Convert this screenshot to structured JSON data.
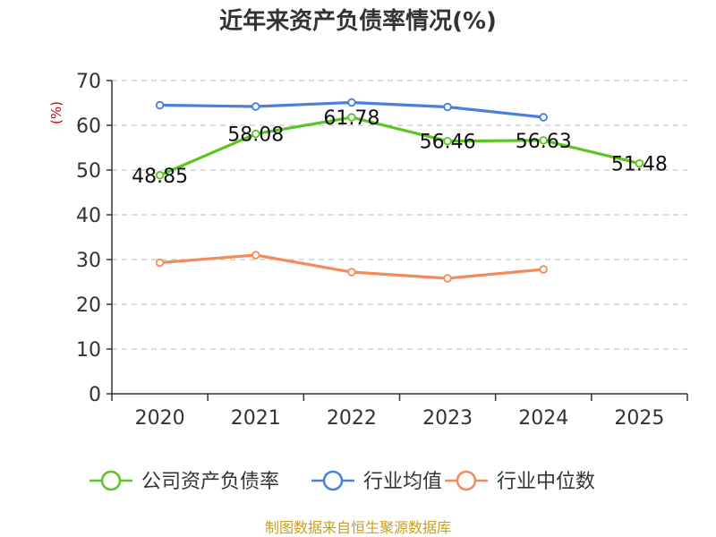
{
  "chart_data": {
    "type": "line",
    "title": "近年来资产负债率情况(%)",
    "ylabel": "(%)",
    "xlabel": "",
    "categories": [
      "2020",
      "2021",
      "2022",
      "2023",
      "2024",
      "2025"
    ],
    "ylim": [
      0,
      70
    ],
    "yticks": [
      0,
      10,
      20,
      30,
      40,
      50,
      60,
      70
    ],
    "grid": true,
    "legend_position": "bottom",
    "series": [
      {
        "name": "公司资产负债率",
        "color": "#5cc520",
        "values": [
          48.85,
          58.08,
          61.78,
          56.46,
          56.63,
          51.48
        ],
        "labels": [
          "48.85",
          "58.08",
          "61.78",
          "56.46",
          "56.63",
          "51.48"
        ]
      },
      {
        "name": "行业均值",
        "color": "#4a7fdb",
        "values": [
          64.5,
          64.2,
          65.1,
          64.1,
          61.8,
          null
        ]
      },
      {
        "name": "行业中位数",
        "color": "#f28c5a",
        "values": [
          29.3,
          31.0,
          27.2,
          25.8,
          27.8,
          null
        ]
      }
    ]
  },
  "source": "制图数据来自恒生聚源数据库"
}
